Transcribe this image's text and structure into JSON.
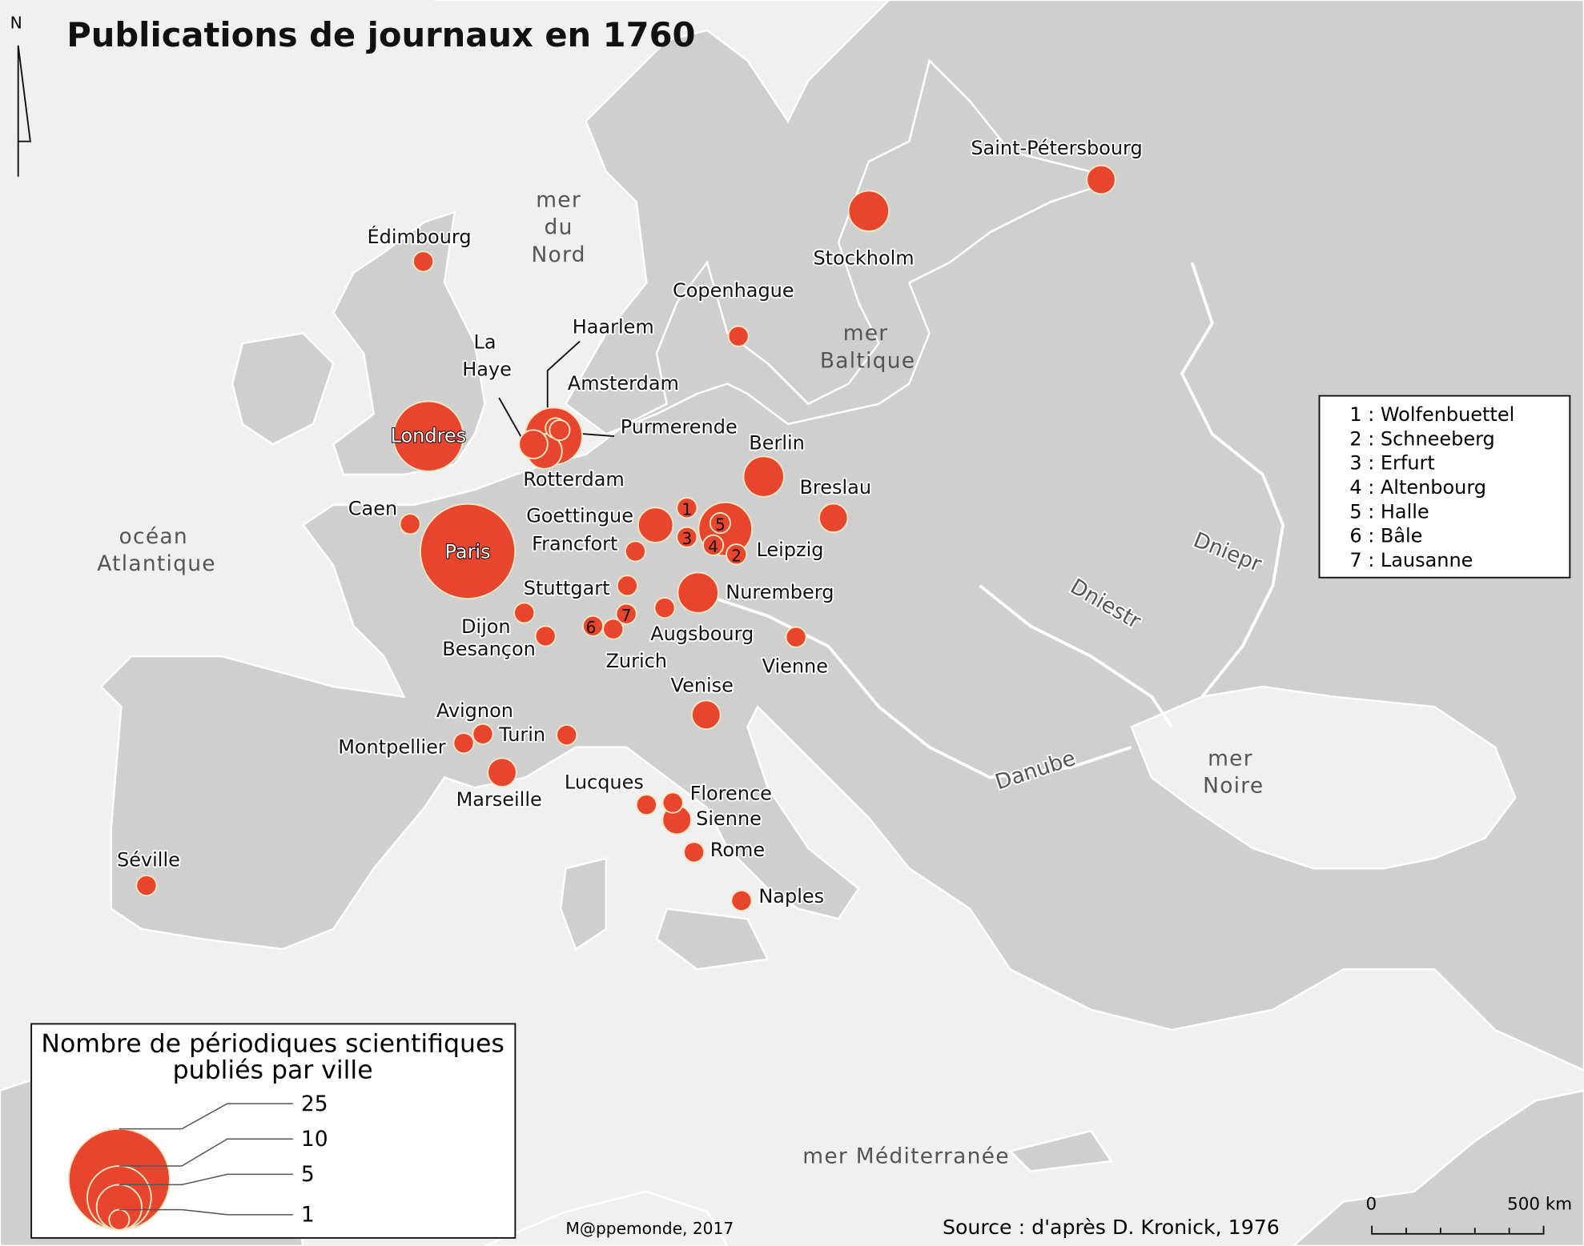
{
  "title": "Publications de journaux en 1760",
  "north_label": "N",
  "seas": {
    "north_sea": [
      "mer",
      "du",
      "Nord"
    ],
    "baltic": [
      "mer",
      "Baltique"
    ],
    "atlantic": [
      "océan",
      "Atlantique"
    ],
    "black_sea": [
      "mer",
      "Noire"
    ],
    "mediterranean": "mer Méditerranée"
  },
  "rivers": {
    "dniepr": "Dniepr",
    "dniestr": "Dniestr",
    "danube": "Danube"
  },
  "cities": [
    {
      "name": "Paris",
      "count": 22
    },
    {
      "name": "Londres",
      "count": 12
    },
    {
      "name": "Amsterdam",
      "count": 8
    },
    {
      "name": "Leipzig",
      "count": 7
    },
    {
      "name": "Stockholm",
      "count": 4
    },
    {
      "name": "Berlin",
      "count": 4
    },
    {
      "name": "Nuremberg",
      "count": 4
    },
    {
      "name": "Goettingue",
      "count": 3
    },
    {
      "name": "Rotterdam",
      "count": 3
    },
    {
      "name": "La Haye",
      "count": 2
    },
    {
      "name": "Haarlem",
      "count": 1
    },
    {
      "name": "Purmerende",
      "count": 1
    },
    {
      "name": "Breslau",
      "count": 2
    },
    {
      "name": "Saint-Pétersbourg",
      "count": 2
    },
    {
      "name": "Venise",
      "count": 2
    },
    {
      "name": "Marseille",
      "count": 2
    },
    {
      "name": "Sienne",
      "count": 2
    },
    {
      "name": "Édimbourg",
      "count": 1
    },
    {
      "name": "Copenhague",
      "count": 1
    },
    {
      "name": "Caen",
      "count": 1
    },
    {
      "name": "Francfort",
      "count": 1
    },
    {
      "name": "Stuttgart",
      "count": 1
    },
    {
      "name": "Augsbourg",
      "count": 1
    },
    {
      "name": "Vienne",
      "count": 1
    },
    {
      "name": "Dijon",
      "count": 1
    },
    {
      "name": "Besançon",
      "count": 1
    },
    {
      "name": "Zurich",
      "count": 1
    },
    {
      "name": "Turin",
      "count": 1
    },
    {
      "name": "Avignon",
      "count": 1
    },
    {
      "name": "Montpellier",
      "count": 1
    },
    {
      "name": "Lucques",
      "count": 1
    },
    {
      "name": "Florence",
      "count": 1
    },
    {
      "name": "Rome",
      "count": 1
    },
    {
      "name": "Naples",
      "count": 1
    },
    {
      "name": "Séville",
      "count": 1
    },
    {
      "name": "1",
      "count": 1
    },
    {
      "name": "2",
      "count": 1
    },
    {
      "name": "3",
      "count": 1
    },
    {
      "name": "4",
      "count": 1
    },
    {
      "name": "5",
      "count": 1
    },
    {
      "name": "6",
      "count": 1
    },
    {
      "name": "7",
      "count": 1
    }
  ],
  "numbered_key": [
    "1 : Wolfenbuettel",
    "2 : Schneeberg",
    "3 : Erfurt",
    "4 : Altenbourg",
    "5 : Halle",
    "6 : Bâle",
    "7 : Lausanne"
  ],
  "legend": {
    "title_line1": "Nombre de périodiques scientifiques",
    "title_line2": "publiés par ville",
    "values": [
      "25",
      "10",
      "5",
      "1"
    ]
  },
  "scale": {
    "start": "0",
    "end": "500 km"
  },
  "credit": "M@ppemonde, 2017",
  "source": "Source : d'après D. Kronick, 1976",
  "colors": {
    "city": "#e8452f",
    "land": "#cfcfcf",
    "sea": "#f0f0f0"
  }
}
